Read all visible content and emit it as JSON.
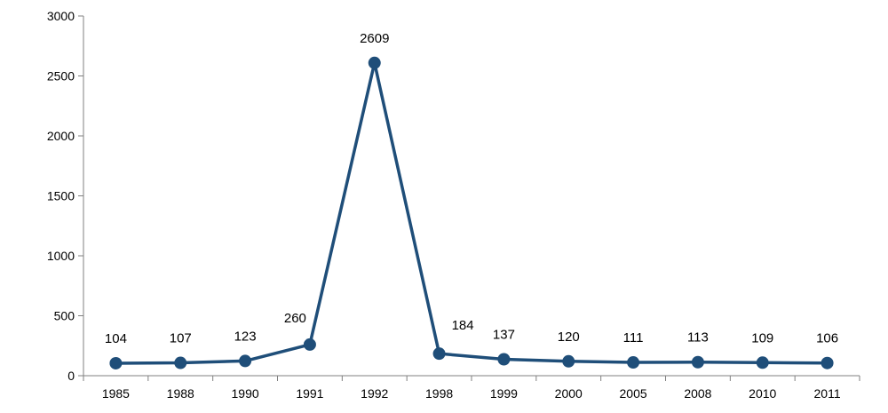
{
  "chart_data": {
    "type": "line",
    "title": "",
    "xlabel": "",
    "ylabel": "",
    "categories": [
      "1985",
      "1988",
      "1990",
      "1991",
      "1992",
      "1998",
      "1999",
      "2000",
      "2005",
      "2008",
      "2010",
      "2011"
    ],
    "series": [
      {
        "values": [
          104,
          107,
          123,
          260,
          2609,
          184,
          137,
          120,
          111,
          113,
          109,
          106
        ],
        "color": "#1f4e79"
      }
    ],
    "ylim": [
      0,
      3000
    ],
    "yticks": [
      0,
      500,
      1000,
      1500,
      2000,
      2500,
      3000
    ],
    "grid": false,
    "legend": "none",
    "data_labels": true
  }
}
